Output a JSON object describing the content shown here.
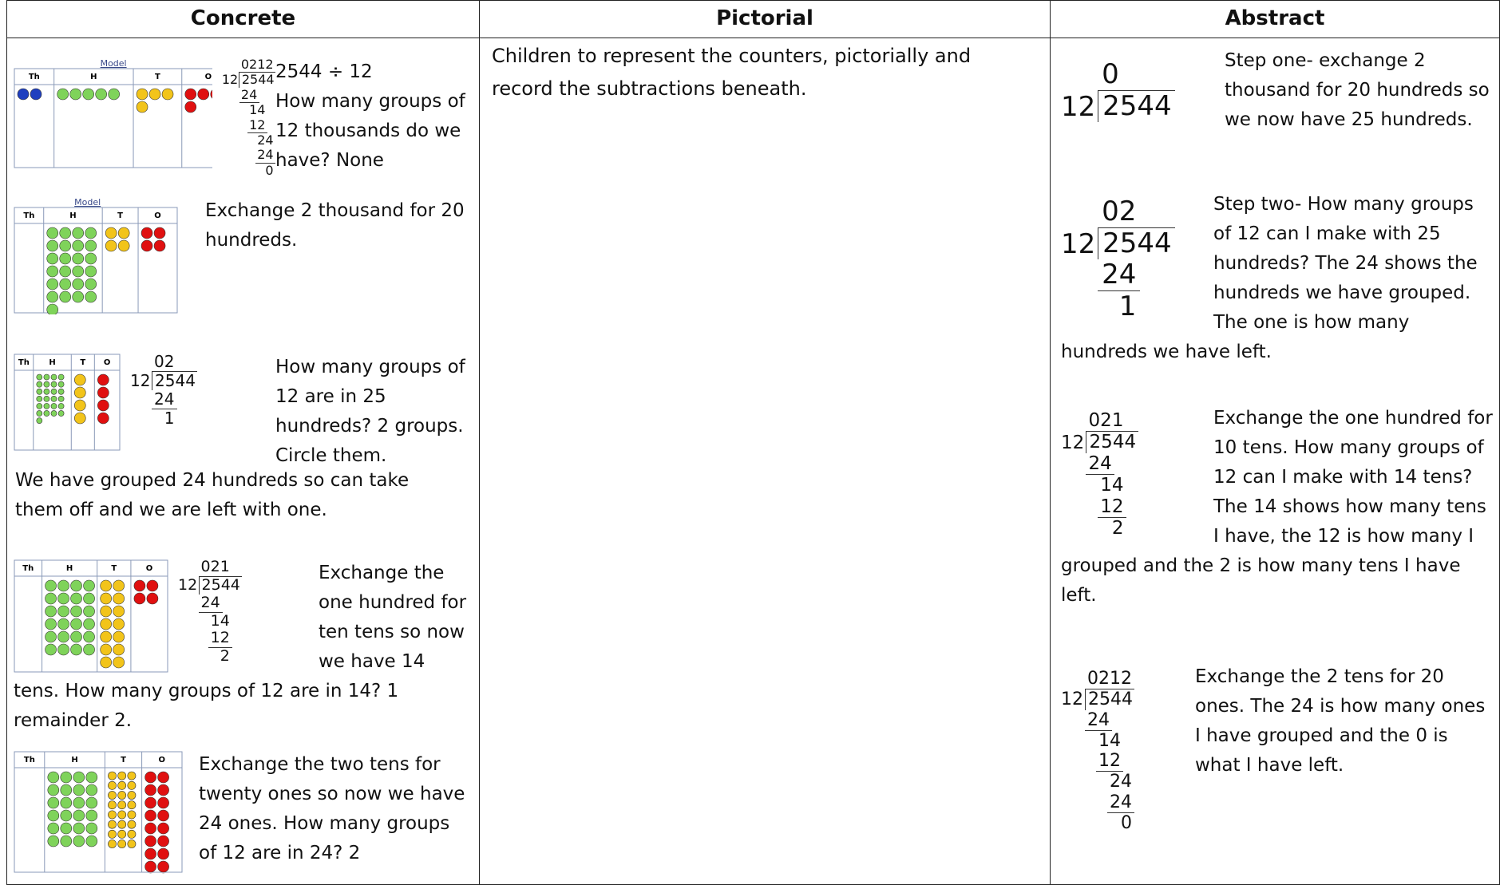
{
  "table": {
    "headers": [
      "Concrete",
      "Pictorial",
      "Abstract"
    ],
    "concrete": {
      "model_label": "Model",
      "place_value_labels": [
        "Th",
        "H",
        "T",
        "O"
      ],
      "blocks": [
        {
          "paragraphs": [
            "2544 ÷ 12",
            "How many groups of 12 thousands do we have? None"
          ],
          "division": {
            "divisor": "12",
            "dividend": "2544",
            "quotient": "0212",
            "steps": [
              "24",
              "14",
              "12",
              "24",
              "24",
              "0"
            ]
          }
        },
        {
          "paragraphs": [
            "Exchange 2 thousand for 20 hundreds."
          ]
        },
        {
          "paragraphs": [
            "How many groups of 12 are in 25 hundreds? 2 groups. Circle them."
          ],
          "division": {
            "divisor": "12",
            "dividend": "2544",
            "quotient": "02",
            "steps": [
              "24",
              "1"
            ]
          }
        },
        {
          "paragraphs": [
            "Exchange the one hundred for ten tens so now we have 14 tens. How many groups of 12 are in 14? 1 remainder 2."
          ],
          "division": {
            "divisor": "12",
            "dividend": "2544",
            "quotient": "021",
            "steps": [
              "24",
              "14",
              "12",
              "2"
            ]
          }
        },
        {
          "paragraphs": [
            "Exchange the two tens for twenty ones so now we have 24 ones. How many groups of 12 are in 24? 2"
          ]
        }
      ],
      "note": "We have grouped 24 hundreds so can take them off and we are left with one."
    },
    "pictorial": {
      "text": "Children to represent the counters, pictorially and record the subtractions beneath."
    },
    "abstract": {
      "blocks": [
        {
          "paragraphs": [
            "Step one- exchange 2 thousand for 20 hundreds so we now have 25 hundreds."
          ],
          "division": {
            "divisor": "12",
            "dividend": "2544",
            "quotient": "0",
            "steps": []
          }
        },
        {
          "paragraphs": [
            "Step two- How many groups of 12 can I make with 25 hundreds? The 24 shows the hundreds we have grouped. The one is how many hundreds we have left."
          ],
          "division": {
            "divisor": "12",
            "dividend": "2544",
            "quotient": "02",
            "steps": [
              "24",
              "1"
            ]
          }
        },
        {
          "paragraphs": [
            "Exchange the one hundred for 10 tens. How many groups of 12 can I make with 14 tens?",
            "The 14 shows how many tens I have, the 12 is how many I grouped and the 2 is how many tens I have left."
          ],
          "division": {
            "divisor": "12",
            "dividend": "2544",
            "quotient": "021",
            "steps": [
              "24",
              "14",
              "12",
              "2"
            ]
          }
        },
        {
          "paragraphs": [
            "Exchange the 2 tens for 20 ones. The 24 is how many ones I have grouped and the 0 is what I have left."
          ],
          "division": {
            "divisor": "12",
            "dividend": "2544",
            "quotient": "0212",
            "steps": [
              "24",
              "14",
              "12",
              "24",
              "24",
              "0"
            ]
          }
        }
      ]
    }
  }
}
